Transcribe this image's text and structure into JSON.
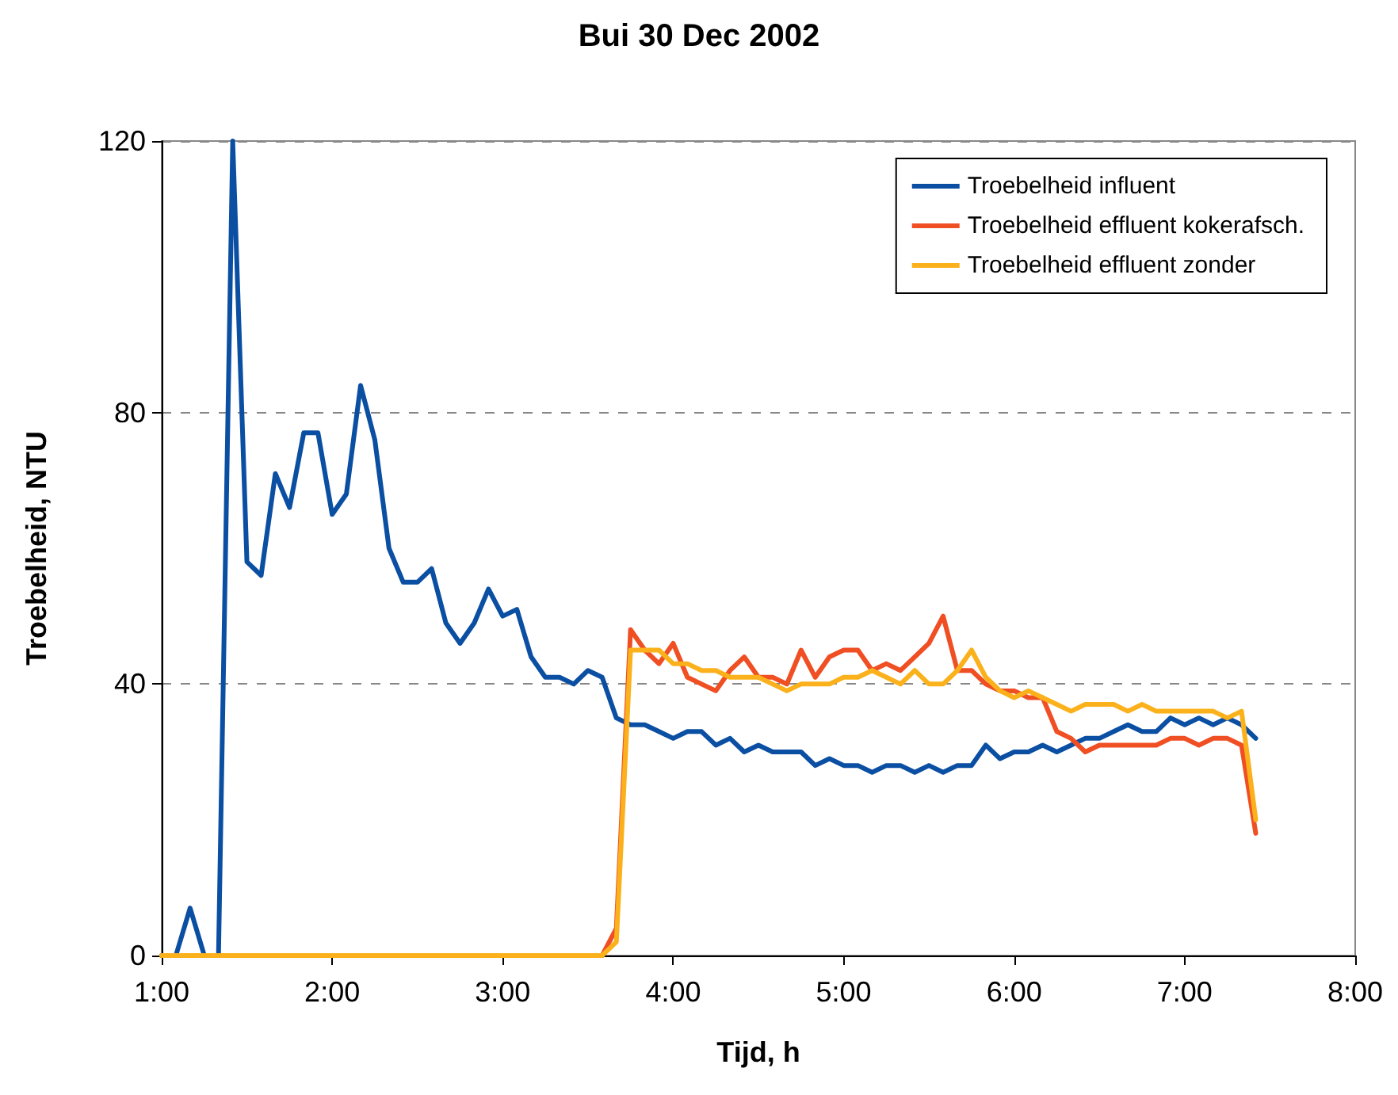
{
  "chart_data": {
    "type": "line",
    "title": "Bui 30 Dec 2002",
    "xlabel": "Tijd, h",
    "ylabel": "Troebelheid, NTU",
    "x": [
      1,
      1.0833,
      1.1667,
      1.25,
      1.3333,
      1.4167,
      1.5,
      1.5833,
      1.6667,
      1.75,
      1.8333,
      1.9167,
      2,
      2.0833,
      2.1667,
      2.25,
      2.3333,
      2.4167,
      2.5,
      2.5833,
      2.6667,
      2.75,
      2.8333,
      2.9167,
      3,
      3.0833,
      3.1667,
      3.25,
      3.3333,
      3.4167,
      3.5,
      3.5833,
      3.6667,
      3.75,
      3.8333,
      3.9167,
      4,
      4.0833,
      4.1667,
      4.25,
      4.3333,
      4.4167,
      4.5,
      4.5833,
      4.6667,
      4.75,
      4.8333,
      4.9167,
      5,
      5.0833,
      5.1667,
      5.25,
      5.3333,
      5.4167,
      5.5,
      5.5833,
      5.6667,
      5.75,
      5.8333,
      5.9167,
      6,
      6.0833,
      6.1667,
      6.25,
      6.3333,
      6.4167,
      6.5,
      6.5833,
      6.6667,
      6.75,
      6.8333,
      6.9167,
      7,
      7.0833,
      7.1667,
      7.25,
      7.3333,
      7.4167
    ],
    "series": [
      {
        "name": "Troebelheid influent",
        "color": "#0b4fa3",
        "values": [
          0,
          0,
          7,
          0,
          0,
          120,
          58,
          56,
          71,
          66,
          77,
          77,
          65,
          68,
          84,
          76,
          60,
          55,
          55,
          57,
          49,
          46,
          49,
          54,
          50,
          51,
          44,
          41,
          41,
          40,
          42,
          41,
          35,
          34,
          34,
          33,
          32,
          33,
          33,
          31,
          32,
          30,
          31,
          30,
          30,
          30,
          28,
          29,
          28,
          28,
          27,
          28,
          28,
          27,
          28,
          27,
          28,
          28,
          31,
          29,
          30,
          30,
          31,
          30,
          31,
          32,
          32,
          33,
          34,
          33,
          33,
          35,
          34,
          35,
          34,
          35,
          34,
          32
        ]
      },
      {
        "name": "Troebelheid effluent kokerafsch.",
        "color": "#f04e23",
        "values": [
          null,
          null,
          null,
          null,
          null,
          null,
          null,
          null,
          null,
          null,
          null,
          null,
          null,
          null,
          null,
          null,
          null,
          null,
          null,
          null,
          null,
          null,
          null,
          null,
          null,
          null,
          null,
          null,
          null,
          null,
          null,
          0,
          4,
          48,
          45,
          43,
          46,
          41,
          40,
          39,
          42,
          44,
          41,
          41,
          40,
          45,
          41,
          44,
          45,
          45,
          42,
          43,
          42,
          44,
          46,
          50,
          42,
          42,
          40,
          39,
          39,
          38,
          38,
          33,
          32,
          30,
          31,
          31,
          31,
          31,
          31,
          32,
          32,
          31,
          32,
          32,
          31,
          18
        ]
      },
      {
        "name": "Troebelheid effluent zonder",
        "color": "#fbb11b",
        "values": [
          0,
          0,
          0,
          0,
          0,
          0,
          0,
          0,
          0,
          0,
          0,
          0,
          0,
          0,
          0,
          0,
          0,
          0,
          0,
          0,
          0,
          0,
          0,
          0,
          0,
          0,
          0,
          0,
          0,
          0,
          0,
          0,
          2,
          45,
          45,
          45,
          43,
          43,
          42,
          42,
          41,
          41,
          41,
          40,
          39,
          40,
          40,
          40,
          41,
          41,
          42,
          41,
          40,
          42,
          40,
          40,
          42,
          45,
          41,
          39,
          38,
          39,
          38,
          37,
          36,
          37,
          37,
          37,
          36,
          37,
          36,
          36,
          36,
          36,
          36,
          35,
          36,
          20
        ]
      }
    ],
    "xlim": [
      1,
      8
    ],
    "xticks": [
      {
        "value": 1,
        "label": "1:00"
      },
      {
        "value": 2,
        "label": "2:00"
      },
      {
        "value": 3,
        "label": "3:00"
      },
      {
        "value": 4,
        "label": "4:00"
      },
      {
        "value": 5,
        "label": "5:00"
      },
      {
        "value": 6,
        "label": "6:00"
      },
      {
        "value": 7,
        "label": "7:00"
      },
      {
        "value": 8,
        "label": "8:00"
      }
    ],
    "ylim": [
      0,
      120
    ],
    "yticks": [
      0,
      40,
      80,
      120
    ],
    "grid": "y",
    "legend": "top right",
    "marker": "none",
    "line_style": "solid"
  }
}
